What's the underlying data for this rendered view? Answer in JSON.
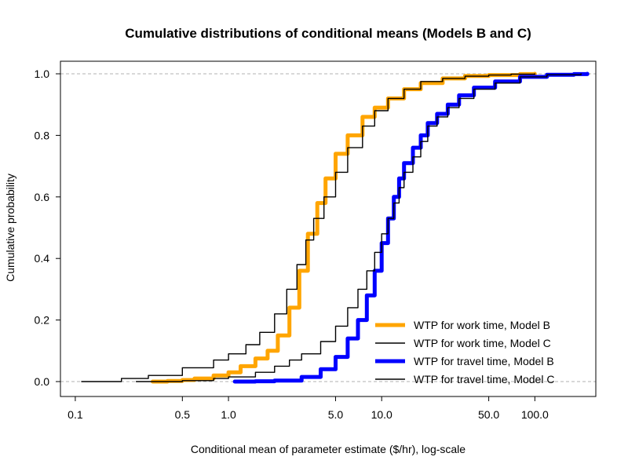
{
  "chart_data": {
    "type": "line",
    "title": "Cumulative distributions of conditional means (Models B and C)",
    "xlabel": "Conditional mean of parameter estimate ($/hr), log-scale",
    "ylabel": "Cumulative probability",
    "x_scale": "log",
    "xlim": [
      0.08,
      250
    ],
    "ylim": [
      0,
      1
    ],
    "x_ticks": [
      0.1,
      0.5,
      1,
      5,
      10,
      50,
      100
    ],
    "x_tick_labels": [
      "0.1",
      "0.5",
      "1.0",
      "5.0",
      "10.0",
      "50.0",
      "100.0"
    ],
    "y_ticks": [
      0,
      0.2,
      0.4,
      0.6,
      0.8,
      1
    ],
    "y_tick_labels": [
      "0.0",
      "0.2",
      "0.4",
      "0.6",
      "0.8",
      "1.0"
    ],
    "reference_lines_y": [
      0,
      1
    ],
    "legend_position": "bottom-right",
    "series": [
      {
        "name": "WTP for work time, Model B",
        "color": "#FFA500",
        "style": "thick",
        "x": [
          0.32,
          0.4,
          0.5,
          0.6,
          0.8,
          1.0,
          1.2,
          1.5,
          1.8,
          2.1,
          2.5,
          2.9,
          3.3,
          3.8,
          4.3,
          5.0,
          6.0,
          7.5,
          9.0,
          11,
          14,
          18,
          25,
          35,
          50,
          80,
          100
        ],
        "y": [
          0.0,
          0.002,
          0.005,
          0.01,
          0.02,
          0.03,
          0.05,
          0.075,
          0.1,
          0.15,
          0.24,
          0.36,
          0.48,
          0.58,
          0.66,
          0.74,
          0.8,
          0.86,
          0.89,
          0.92,
          0.95,
          0.97,
          0.985,
          0.993,
          0.996,
          0.999,
          1.0
        ]
      },
      {
        "name": "WTP for work time, Model C",
        "color": "#000000",
        "style": "thin",
        "x": [
          0.11,
          0.2,
          0.3,
          0.5,
          0.8,
          1.0,
          1.3,
          1.6,
          2.0,
          2.4,
          2.8,
          3.2,
          3.6,
          4.2,
          5.0,
          6.0,
          7.5,
          9.0,
          11,
          14,
          18,
          25,
          35,
          50,
          70,
          100
        ],
        "y": [
          0.0,
          0.01,
          0.02,
          0.045,
          0.07,
          0.09,
          0.12,
          0.16,
          0.22,
          0.3,
          0.38,
          0.46,
          0.53,
          0.6,
          0.68,
          0.76,
          0.83,
          0.88,
          0.92,
          0.95,
          0.975,
          0.985,
          0.992,
          0.996,
          0.999,
          1.0
        ]
      },
      {
        "name": "WTP for travel time, Model B",
        "color": "#0000FF",
        "style": "thick",
        "x": [
          1.1,
          1.5,
          2.0,
          3.0,
          4.0,
          5.0,
          6.0,
          7.0,
          8.0,
          9.0,
          10.0,
          11.0,
          12.0,
          13.0,
          14.0,
          16.0,
          18.0,
          20.0,
          23.0,
          27.0,
          32.0,
          40.0,
          55.0,
          80.0,
          120.0,
          180.0,
          220.0
        ],
        "y": [
          0.0,
          0.001,
          0.003,
          0.015,
          0.04,
          0.08,
          0.14,
          0.2,
          0.28,
          0.36,
          0.45,
          0.53,
          0.6,
          0.66,
          0.71,
          0.76,
          0.8,
          0.84,
          0.87,
          0.9,
          0.93,
          0.955,
          0.975,
          0.99,
          0.997,
          0.999,
          1.0
        ]
      },
      {
        "name": "WTP for travel time, Model C",
        "color": "#000000",
        "style": "thin",
        "x": [
          0.25,
          0.5,
          0.8,
          1.0,
          1.5,
          2.0,
          2.5,
          3.0,
          4.0,
          5.0,
          6.0,
          7.0,
          8.0,
          9.0,
          10.0,
          11.0,
          12.0,
          13.0,
          14.0,
          16.0,
          18.0,
          20.0,
          23.0,
          27.0,
          32.0,
          40.0,
          55.0,
          80.0,
          120.0,
          200.0
        ],
        "y": [
          0.0,
          0.003,
          0.01,
          0.015,
          0.03,
          0.05,
          0.07,
          0.09,
          0.13,
          0.18,
          0.24,
          0.3,
          0.36,
          0.42,
          0.48,
          0.53,
          0.58,
          0.63,
          0.68,
          0.73,
          0.78,
          0.83,
          0.86,
          0.89,
          0.92,
          0.95,
          0.97,
          0.99,
          0.997,
          1.0
        ]
      }
    ]
  }
}
